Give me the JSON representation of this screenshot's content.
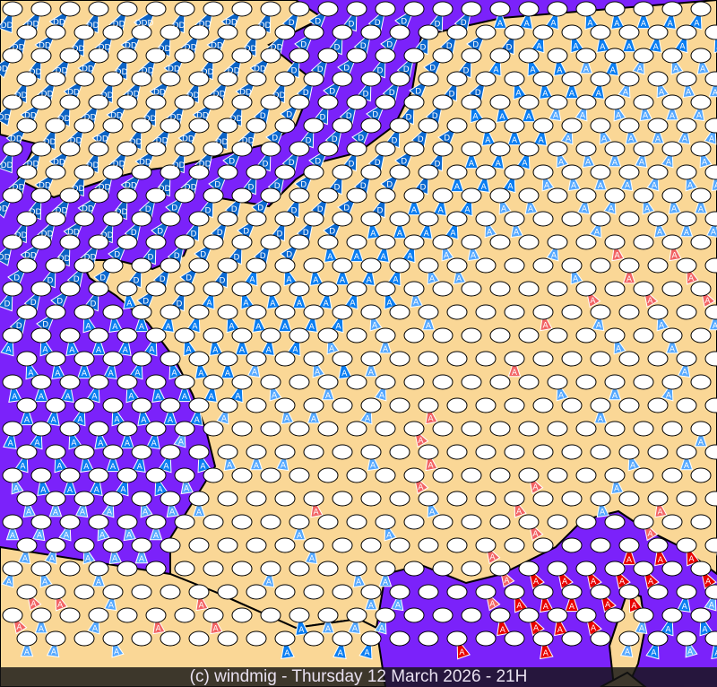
{
  "footer": {
    "caption": "(c) windmig - Thursday 12 March 2026 - 21H"
  },
  "colors": {
    "sea": "#7b22fa",
    "land": "#fad796",
    "coast": "#000000",
    "marker_ellipse": "#ffffff",
    "A_light": "#55a8ff",
    "A_blue": "#0a7ef2",
    "D_blue": "#0a68d0",
    "DD_blue": "#0a62c4",
    "A_red_light": "#f26464",
    "A_red": "#e80000"
  },
  "legend_codes": {
    ".": "",
    "a": "A",
    "A": "A",
    "d": "D",
    "D": "DD",
    "T": "DDD",
    "r": "A",
    "R": "A"
  },
  "marker_rows": [
    "DDDDDTDDDDdddddddAAAAAAAA",
    "DDDDDDDDDDddddddddAAAAAAA",
    "DDDDDDDDDDdddddddAAAaAaaa",
    "DDDDDDDDDDdddddddAAAAaaaa",
    "DDDDDDDDDdddddddAAAaaaaaa",
    "DDDDDDDDDdddddddAAAaaaaaa",
    "DDDDDDDDddddddddAAAaaaaaa",
    "DDDDDDDddddddddAAAaaaaaaa",
    "DDDDDdddddddddAAAaa.aaaaa",
    "DDDDddddddddAAAAaa..a.aaa",
    "DDDDdddddddAAAAaa..a.r.r.",
    "ddddddddAAAAAAaa...a.r.r.",
    "ddddAddAAAAAAAa.....r.r.r",
    "ddAAAAAAAAAAa.a...r.a.a.a",
    "AAAAAAAAAAAa.a.......a.a.",
    "AAAAAAAAa.aAa....r.....a.",
    "AAAAAAAAAa.a.a.....a.a.a.",
    "AAAAAAAa.aa.a.r.....a....",
    "AAAAAAa.......r.........a",
    "AAAAAAAaaa..a.r......a.a.",
    "aAAAAAa.......r...r..a...",
    "aaaaaaa...r...a..r..a.r..",
    "aaaaaa....a..a....r...r..",
    "aaaaa.....a.....r....RRRR",
    "aa.a.....a..aa...rRRRRR.R",
    "rr.a..r.....aa..rRRRRR.Aa",
    "ra.a.r.r..Aaaa...RRRR.aAA",
    "aa.a.....A.AA..R..R..aAaA"
  ]
}
